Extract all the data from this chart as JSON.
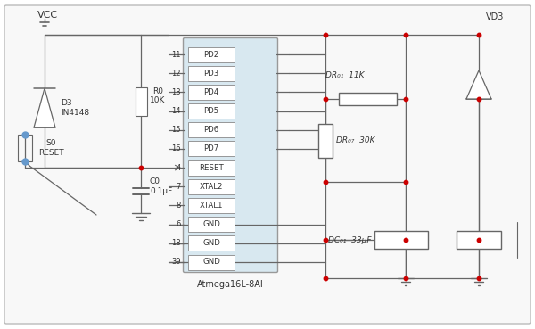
{
  "bg_color": "#ffffff",
  "outer_bg": "#f5f5f5",
  "chip_bg": "#d8e8f0",
  "chip_border": "#888888",
  "line_color": "#666666",
  "text_color": "#333333",
  "dot_color": "#cc0000",
  "title": "Atmega16L-8AI",
  "chip_pins": [
    "PD2",
    "PD3",
    "PD4",
    "PD5",
    "PD6",
    "PD7",
    "RESET",
    "XTAL2",
    "XTAL1",
    "GND",
    "GND",
    "GND"
  ],
  "chip_pin_nums": [
    "11",
    "12",
    "13",
    "14",
    "15",
    "16",
    "4",
    "7",
    "8",
    "6",
    "18",
    "39"
  ],
  "vcc_label": "VCC",
  "d3_label": "D3\nIN4148",
  "r0_label": "R0\n10K",
  "c0_label": "C0\n0.1μF",
  "s0_label": "S0\nRESET",
  "dr01_label": "DR₀₁  11K",
  "dr07_label": "DR₀₇  30K",
  "dc01_label": "DC₀₁  33μF",
  "vd3_label": "VD3"
}
